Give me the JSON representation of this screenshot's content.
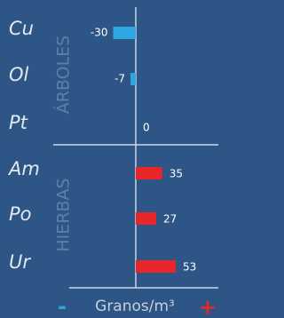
{
  "chart_data": {
    "type": "bar",
    "orientation": "horizontal",
    "categories": [
      "Cu",
      "Ol",
      "Pt",
      "Am",
      "Po",
      "Ur"
    ],
    "values": [
      -30,
      -7,
      0,
      35,
      27,
      53
    ],
    "negative_color": "#2ea6e0",
    "positive_color": "#e8262a",
    "xlim": [
      -60,
      100
    ],
    "groups": [
      "ÁRBOLES",
      "HIERBAS"
    ],
    "x_label": "Granos/m³",
    "zoom_out": "-",
    "zoom_in": "+"
  }
}
